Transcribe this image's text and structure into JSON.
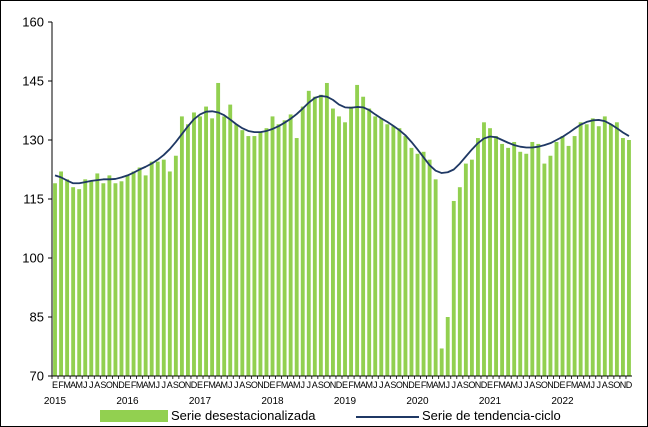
{
  "chart_data": {
    "type": "bar",
    "title": "",
    "xlabel": "",
    "ylabel": "",
    "ylim": [
      70,
      160
    ],
    "yticks": [
      70,
      85,
      100,
      115,
      130,
      145,
      160
    ],
    "grid": false,
    "legend_position": "bottom",
    "month_labels": [
      "E",
      "F",
      "M",
      "A",
      "M",
      "J",
      "J",
      "A",
      "S",
      "O",
      "N",
      "D"
    ],
    "years": [
      "2015",
      "2016",
      "2017",
      "2018",
      "2019",
      "2020",
      "2021",
      "2022"
    ],
    "series": [
      {
        "name": "Serie desestacionalizada",
        "kind": "bar",
        "color": "#92D050",
        "values": [
          119,
          122,
          120,
          118,
          117.5,
          120,
          119.5,
          121.5,
          119,
          121,
          119,
          119.5,
          121,
          122,
          123,
          121,
          124.5,
          124.5,
          125,
          122,
          126,
          136,
          134,
          137,
          136,
          138.5,
          135.5,
          144.5,
          136,
          139,
          134,
          132.5,
          131,
          131,
          132,
          133,
          136,
          134,
          135,
          136.5,
          130.5,
          138.5,
          142.5,
          141,
          141.5,
          144.5,
          138,
          136,
          134.5,
          138.5,
          144,
          141,
          138,
          136,
          135.5,
          134,
          133.5,
          133,
          131,
          128,
          126.5,
          127,
          125,
          120,
          77,
          85,
          114.5,
          118,
          124,
          125,
          130.5,
          134.5,
          133,
          131,
          129,
          128,
          129.5,
          127,
          126.5,
          129.5,
          129,
          124,
          126,
          129.5,
          131,
          128.5,
          131,
          134.5,
          134,
          135.5,
          133.5,
          136,
          134,
          134.5,
          130.5,
          130
        ]
      },
      {
        "name": "Serie de tendencia-ciclo",
        "kind": "line",
        "color": "#1F3864",
        "values": [
          121,
          120.5,
          119.7,
          119,
          119,
          119.3,
          119.6,
          119.8,
          120,
          120,
          120.1,
          120.5,
          121,
          121.7,
          122.5,
          123.2,
          124,
          125,
          126.2,
          127.7,
          129.5,
          131.5,
          133.5,
          135.3,
          136.5,
          137.2,
          137.3,
          137,
          136.3,
          135.2,
          134,
          133,
          132.3,
          132,
          132,
          132.3,
          132.8,
          133.5,
          134.4,
          135.4,
          136.6,
          138,
          139.5,
          140.7,
          141.2,
          141,
          140.2,
          139,
          138.3,
          138.2,
          138.4,
          138.3,
          137.6,
          136.5,
          135.5,
          134.6,
          133.6,
          132.5,
          131.2,
          129.5,
          127.6,
          125.6,
          123.6,
          122.2,
          121.6,
          121.8,
          122.5,
          124,
          125.8,
          127.6,
          129.2,
          130.4,
          130.9,
          130.7,
          130,
          129.3,
          128.7,
          128.3,
          128.1,
          128.1,
          128.3,
          128.7,
          129.2,
          130,
          130.8,
          131.8,
          132.9,
          133.9,
          134.6,
          135,
          135.1,
          134.8,
          134,
          133,
          131.9,
          131
        ]
      }
    ]
  }
}
